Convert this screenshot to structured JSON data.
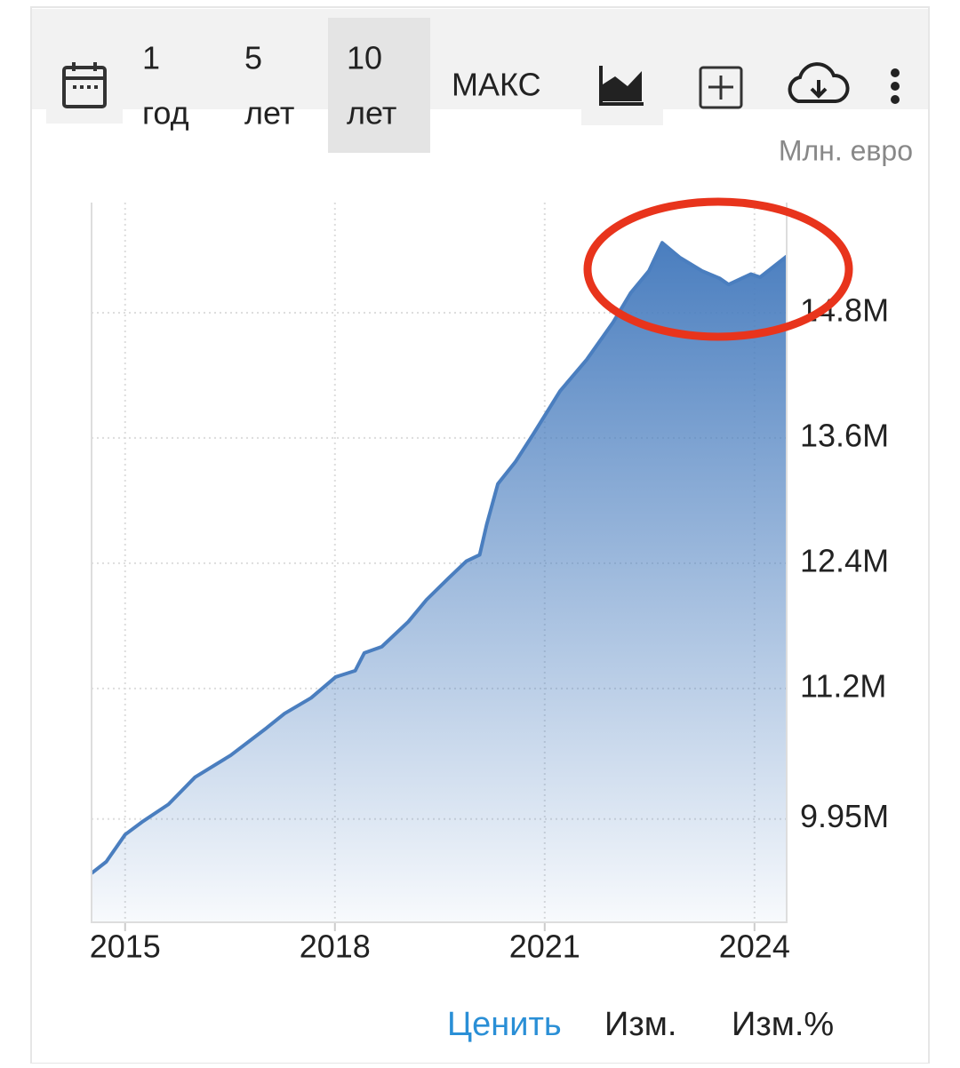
{
  "toolbar": {
    "ranges": [
      {
        "number": "1",
        "unit": "год"
      },
      {
        "number": "5",
        "unit": "лет"
      },
      {
        "number": "10",
        "unit": "лет"
      }
    ],
    "max": "МАКС"
  },
  "chart_data": {
    "type": "area",
    "y_axis_label": "Млн. евро",
    "color": "#4a7ebf",
    "grid": true,
    "series": [
      {
        "x": [
          2014.52,
          2014.73,
          2015.0,
          2015.24,
          2015.62,
          2016.0,
          2016.51,
          2017.02,
          2017.28,
          2017.66,
          2018.01,
          2018.29,
          2018.42,
          2018.67,
          2019.05,
          2019.31,
          2019.63,
          2019.88,
          2020.07,
          2020.17,
          2020.33,
          2020.58,
          2020.83,
          2021.22,
          2021.6,
          2021.98,
          2022.23,
          2022.49,
          2022.68,
          2022.93,
          2023.25,
          2023.5,
          2023.63,
          2023.82,
          2023.95,
          2024.08,
          2024.27,
          2024.46
        ],
        "values": [
          9430000,
          9540000,
          9800000,
          9920000,
          10090000,
          10350000,
          10560000,
          10820000,
          10960000,
          11110000,
          11310000,
          11370000,
          11540000,
          11600000,
          11840000,
          12050000,
          12260000,
          12420000,
          12480000,
          12770000,
          13160000,
          13370000,
          13630000,
          14050000,
          14350000,
          14710000,
          14990000,
          15200000,
          15470000,
          15330000,
          15200000,
          15130000,
          15070000,
          15130000,
          15170000,
          15140000,
          15240000,
          15340000
        ]
      }
    ],
    "xlim": [
      2014.52,
      2024.46
    ],
    "xticks": [
      2015,
      2018,
      2021,
      2024
    ],
    "ylim": [
      8960000,
      15855000
    ],
    "yticks": [
      {
        "value": 9950000,
        "label": "9.95M"
      },
      {
        "value": 11200000,
        "label": "11.2M"
      },
      {
        "value": 12400000,
        "label": "12.4M"
      },
      {
        "value": 13600000,
        "label": "13.6M"
      },
      {
        "value": 14800000,
        "label": "14.8M"
      }
    ]
  },
  "tabs": [
    "Ценить",
    "Изм.",
    "Изм.%"
  ]
}
